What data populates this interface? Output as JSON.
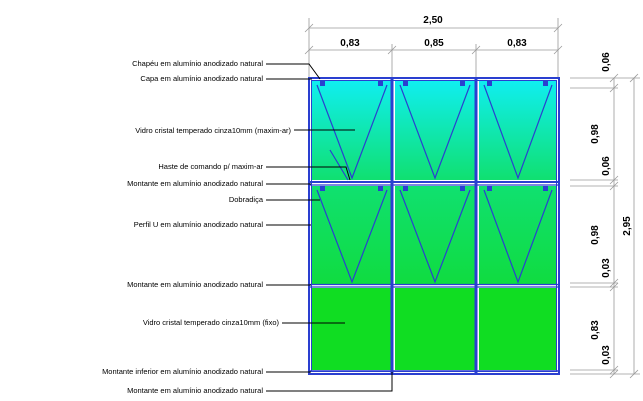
{
  "labels": {
    "chapeu": "Chapéu em alumínio anodizado natural",
    "capa": "Capa em alumínio anodizado natural",
    "vidro_maxim_ar": "Vidro cristal temperado cinza10mm (maxim-ar)",
    "haste": "Haste de comando p/ maxim-ar",
    "montante_1": "Montante em alumínio anodizado natural",
    "dobradica": "Dobradiça",
    "perfil_u": "Perfil U em alumínio anodizado natural",
    "montante_2": "Montante em alumínio anodizado natural",
    "vidro_fixo": "Vidro cristal temperado cinza10mm (fixo)",
    "montante_inferior": "Montante inferior em alumínio anodizado natural",
    "montante_3": "Montante em alumínio anodizado natural"
  },
  "dimensions": {
    "total_width": "2,50",
    "col_1": "0,83",
    "col_2": "0,85",
    "col_3": "0,83",
    "top_cap": "0,06",
    "row_1": "0,98",
    "mid_transom": "0,06",
    "row_2": "0,98",
    "low_transom": "0,03",
    "row_3": "0,83",
    "bottom": "0,03",
    "total_height": "2,95"
  },
  "colors": {
    "frame": "#2a3fd0",
    "glass_top_start": "#10eef0",
    "glass_top_end": "#10e070",
    "glass_mid_start": "#10e070",
    "glass_mid_end": "#10dc40",
    "glass_fixed": "#10dd22"
  }
}
